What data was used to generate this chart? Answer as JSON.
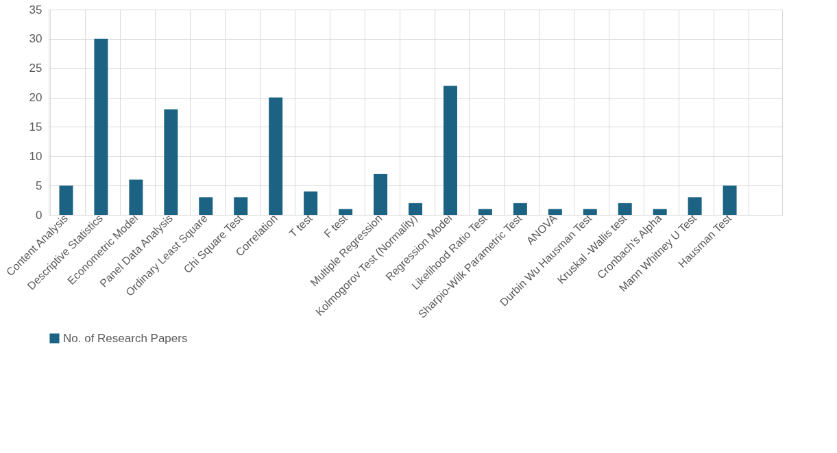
{
  "chart_data": {
    "type": "bar",
    "categories": [
      "Content Analysis",
      "Descriptive Statistics",
      "Econometric Model",
      "Panel Data Analysis",
      "Ordinary Least Square",
      "Chi Square Test",
      "Correlation",
      "T test",
      "F test",
      "Multiple Regression",
      "Kolmogorov Test (Normality)",
      "Regression Model",
      "Likelihood Ratio Test",
      "Sharpio-Wilk Parametric Test",
      "ANOVA",
      "Durbin Wu Hausman Test",
      "Kruskal -Wallis test",
      "Cronbach’s Alpha",
      "Mann Whitney U Test",
      "Hausman Test",
      null
    ],
    "series": [
      {
        "name": "No. of Research Papers",
        "color": "#1b6283",
        "values": [
          5,
          30,
          6,
          18,
          3,
          3,
          20,
          4,
          1,
          7,
          2,
          22,
          1,
          2,
          1,
          1,
          2,
          1,
          3,
          5,
          null
        ]
      }
    ],
    "ylim": [
      0,
      35
    ],
    "yticks": [
      0,
      5,
      10,
      15,
      20,
      25,
      30,
      35
    ],
    "grid": true,
    "legend": "bottom"
  }
}
